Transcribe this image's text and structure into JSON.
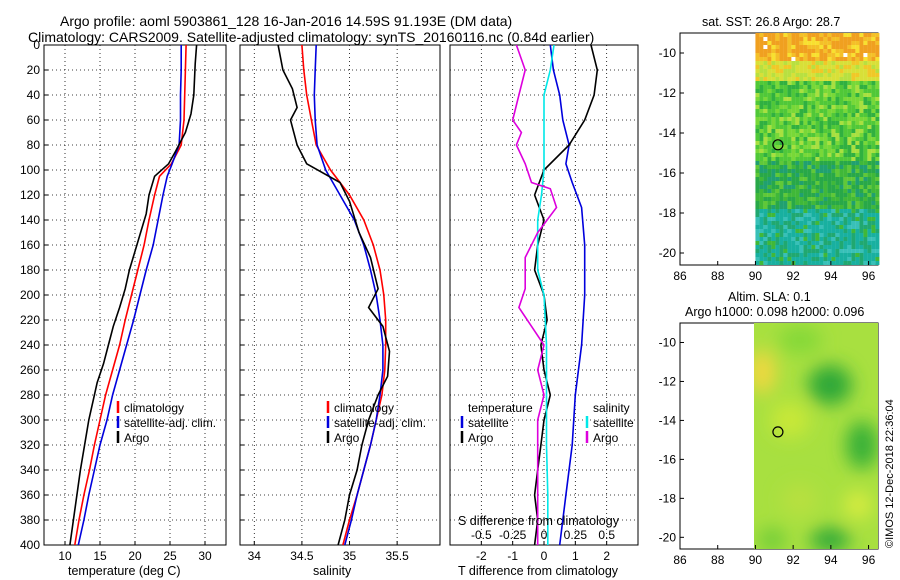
{
  "header": {
    "title_line1": "Argo profile: aoml 5903861_128 16-Jan-2016 14.59S 91.193E (DM data)",
    "title_line2": "Climatology: CARS2009. Satellite-adjusted climatology: synTS_20160116.nc (0.84d earlier)"
  },
  "credit": "©IMOS 12-Dec-2018 22:36:04",
  "colors": {
    "climatology": "#ff0000",
    "satellite": "#0000dd",
    "argo": "#000000",
    "sat_salinity": "#00e8e8",
    "argo_salinity": "#dd00dd"
  },
  "chart_data": [
    {
      "type": "line",
      "id": "temperature",
      "xlabel": "temperature (deg C)",
      "ylabel": "depth",
      "xlim": [
        7,
        33
      ],
      "ylim": [
        400,
        0
      ],
      "xticks": [
        10,
        15,
        20,
        25,
        30
      ],
      "yticks": [
        0,
        20,
        40,
        60,
        80,
        100,
        120,
        140,
        160,
        180,
        200,
        220,
        240,
        260,
        280,
        300,
        320,
        340,
        360,
        380,
        400
      ],
      "legend": [
        "climatology",
        "satellite-adj. clim.",
        "Argo"
      ],
      "series": [
        {
          "name": "climatology",
          "color": "#ff0000",
          "points": [
            [
              27.3,
              0
            ],
            [
              27.2,
              20
            ],
            [
              27.1,
              40
            ],
            [
              27.0,
              60
            ],
            [
              26.6,
              80
            ],
            [
              25.2,
              95
            ],
            [
              23.5,
              105
            ],
            [
              22.8,
              120
            ],
            [
              22.0,
              140
            ],
            [
              21.3,
              160
            ],
            [
              20.4,
              180
            ],
            [
              19.5,
              200
            ],
            [
              18.6,
              220
            ],
            [
              17.8,
              240
            ],
            [
              16.8,
              260
            ],
            [
              15.8,
              280
            ],
            [
              15.0,
              300
            ],
            [
              14.2,
              320
            ],
            [
              13.5,
              340
            ],
            [
              12.7,
              360
            ],
            [
              12.0,
              380
            ],
            [
              11.4,
              400
            ]
          ]
        },
        {
          "name": "satellite-adj. clim.",
          "color": "#0000dd",
          "points": [
            [
              26.6,
              0
            ],
            [
              26.6,
              20
            ],
            [
              26.5,
              40
            ],
            [
              26.5,
              60
            ],
            [
              26.3,
              80
            ],
            [
              25.3,
              95
            ],
            [
              24.6,
              105
            ],
            [
              24.0,
              120
            ],
            [
              23.3,
              140
            ],
            [
              22.6,
              160
            ],
            [
              21.6,
              180
            ],
            [
              20.7,
              200
            ],
            [
              19.8,
              220
            ],
            [
              18.8,
              240
            ],
            [
              17.8,
              260
            ],
            [
              16.8,
              280
            ],
            [
              16.0,
              300
            ],
            [
              15.0,
              320
            ],
            [
              14.2,
              340
            ],
            [
              13.4,
              360
            ],
            [
              12.7,
              380
            ],
            [
              11.9,
              400
            ]
          ]
        },
        {
          "name": "Argo",
          "color": "#000000",
          "points": [
            [
              28.8,
              0
            ],
            [
              28.6,
              15
            ],
            [
              28.4,
              40
            ],
            [
              28.0,
              55
            ],
            [
              27.2,
              70
            ],
            [
              25.8,
              85
            ],
            [
              24.8,
              95
            ],
            [
              22.8,
              105
            ],
            [
              22.0,
              120
            ],
            [
              21.6,
              135
            ],
            [
              20.8,
              150
            ],
            [
              20.0,
              165
            ],
            [
              19.2,
              180
            ],
            [
              18.6,
              195
            ],
            [
              17.8,
              210
            ],
            [
              16.9,
              225
            ],
            [
              16.2,
              240
            ],
            [
              15.5,
              255
            ],
            [
              14.6,
              270
            ],
            [
              14.0,
              285
            ],
            [
              13.4,
              300
            ],
            [
              12.8,
              320
            ],
            [
              12.2,
              340
            ],
            [
              11.7,
              360
            ],
            [
              11.2,
              380
            ],
            [
              10.7,
              400
            ]
          ]
        }
      ]
    },
    {
      "type": "line",
      "id": "salinity",
      "xlabel": "salinity",
      "xlim": [
        33.85,
        35.95
      ],
      "ylim": [
        400,
        0
      ],
      "xticks": [
        34,
        34.5,
        35,
        35.5
      ],
      "legend": [
        "climatology",
        "satellite-adj. clim.",
        "Argo"
      ],
      "series": [
        {
          "name": "climatology",
          "color": "#ff0000",
          "points": [
            [
              34.5,
              0
            ],
            [
              34.52,
              20
            ],
            [
              34.55,
              40
            ],
            [
              34.6,
              60
            ],
            [
              34.65,
              80
            ],
            [
              34.8,
              100
            ],
            [
              35.0,
              120
            ],
            [
              35.15,
              140
            ],
            [
              35.25,
              160
            ],
            [
              35.32,
              180
            ],
            [
              35.36,
              200
            ],
            [
              35.38,
              220
            ],
            [
              35.38,
              240
            ],
            [
              35.37,
              260
            ],
            [
              35.34,
              280
            ],
            [
              35.28,
              300
            ],
            [
              35.22,
              320
            ],
            [
              35.15,
              340
            ],
            [
              35.08,
              360
            ],
            [
              35.0,
              380
            ],
            [
              34.93,
              400
            ]
          ]
        },
        {
          "name": "satellite-adj. clim.",
          "color": "#0000dd",
          "points": [
            [
              34.65,
              0
            ],
            [
              34.64,
              20
            ],
            [
              34.63,
              40
            ],
            [
              34.64,
              60
            ],
            [
              34.66,
              80
            ],
            [
              34.75,
              100
            ],
            [
              34.9,
              120
            ],
            [
              35.05,
              140
            ],
            [
              35.15,
              160
            ],
            [
              35.22,
              180
            ],
            [
              35.28,
              200
            ],
            [
              35.32,
              220
            ],
            [
              35.35,
              240
            ],
            [
              35.35,
              260
            ],
            [
              35.32,
              280
            ],
            [
              35.28,
              300
            ],
            [
              35.22,
              320
            ],
            [
              35.15,
              340
            ],
            [
              35.08,
              360
            ],
            [
              35.02,
              380
            ],
            [
              34.95,
              400
            ]
          ]
        },
        {
          "name": "Argo",
          "color": "#000000",
          "points": [
            [
              34.25,
              0
            ],
            [
              34.3,
              20
            ],
            [
              34.4,
              35
            ],
            [
              34.45,
              50
            ],
            [
              34.38,
              60
            ],
            [
              34.45,
              80
            ],
            [
              34.55,
              95
            ],
            [
              34.9,
              110
            ],
            [
              35.0,
              125
            ],
            [
              35.1,
              150
            ],
            [
              35.22,
              170
            ],
            [
              35.3,
              195
            ],
            [
              35.2,
              210
            ],
            [
              35.35,
              225
            ],
            [
              35.42,
              245
            ],
            [
              35.4,
              265
            ],
            [
              35.3,
              280
            ],
            [
              35.2,
              300
            ],
            [
              35.13,
              320
            ],
            [
              35.08,
              340
            ],
            [
              35.0,
              360
            ],
            [
              34.95,
              380
            ],
            [
              34.88,
              400
            ]
          ]
        }
      ]
    },
    {
      "type": "line",
      "id": "difference",
      "xlabel": "T difference from climatology",
      "xlabel_top": "S difference from climatology",
      "xlim": [
        -3,
        3
      ],
      "ylim": [
        400,
        0
      ],
      "xticks": [
        -2,
        -1,
        0,
        1,
        2
      ],
      "xticks_top": [
        "-0.5",
        "-0.25",
        "0",
        "0.25",
        "0.5"
      ],
      "legend_temperature_title": "temperature",
      "legend_salinity_title": "salinity",
      "legend_temperature": [
        "satellite",
        "Argo"
      ],
      "legend_salinity": [
        "satellite",
        "Argo"
      ],
      "series": [
        {
          "name": "temperature satellite",
          "color": "#0000dd",
          "points": [
            [
              0.2,
              0
            ],
            [
              0.3,
              20
            ],
            [
              0.5,
              40
            ],
            [
              0.6,
              60
            ],
            [
              0.8,
              80
            ],
            [
              0.7,
              95
            ],
            [
              0.9,
              110
            ],
            [
              1.2,
              130
            ],
            [
              1.3,
              160
            ],
            [
              1.3,
              200
            ],
            [
              1.2,
              240
            ],
            [
              1.0,
              280
            ],
            [
              0.9,
              320
            ],
            [
              0.7,
              360
            ],
            [
              0.5,
              400
            ]
          ]
        },
        {
          "name": "temperature Argo",
          "color": "#000000",
          "points": [
            [
              1.5,
              0
            ],
            [
              1.7,
              20
            ],
            [
              1.6,
              40
            ],
            [
              1.3,
              60
            ],
            [
              0.8,
              80
            ],
            [
              0.0,
              100
            ],
            [
              -0.3,
              120
            ],
            [
              0.0,
              140
            ],
            [
              -0.2,
              160
            ],
            [
              -0.3,
              180
            ],
            [
              0.0,
              200
            ],
            [
              0.1,
              220
            ],
            [
              -0.1,
              240
            ],
            [
              0.0,
              260
            ],
            [
              0.2,
              280
            ],
            [
              0.0,
              300
            ],
            [
              -0.1,
              320
            ],
            [
              -0.2,
              340
            ],
            [
              -0.3,
              360
            ],
            [
              -0.2,
              380
            ],
            [
              -0.3,
              400
            ]
          ]
        },
        {
          "name": "salinity satellite",
          "color": "#00e8e8",
          "points": [
            [
              0.08,
              0
            ],
            [
              0.05,
              20
            ],
            [
              0.0,
              40
            ],
            [
              0.0,
              60
            ],
            [
              0.0,
              80
            ],
            [
              0.0,
              100
            ],
            [
              -0.02,
              120
            ],
            [
              -0.05,
              140
            ],
            [
              -0.05,
              160
            ],
            [
              -0.05,
              180
            ],
            [
              0.0,
              200
            ],
            [
              0.02,
              240
            ],
            [
              0.02,
              280
            ],
            [
              0.02,
              320
            ],
            [
              0.03,
              360
            ],
            [
              0.03,
              400
            ]
          ]
        },
        {
          "name": "salinity Argo",
          "color": "#dd00dd",
          "points": [
            [
              -0.22,
              0
            ],
            [
              -0.15,
              20
            ],
            [
              -0.2,
              40
            ],
            [
              -0.25,
              60
            ],
            [
              -0.18,
              70
            ],
            [
              -0.22,
              80
            ],
            [
              -0.15,
              95
            ],
            [
              -0.1,
              110
            ],
            [
              0.05,
              115
            ],
            [
              0.1,
              130
            ],
            [
              -0.05,
              150
            ],
            [
              -0.15,
              170
            ],
            [
              -0.15,
              195
            ],
            [
              -0.2,
              210
            ],
            [
              -0.1,
              225
            ],
            [
              0.0,
              240
            ],
            [
              -0.05,
              260
            ],
            [
              0.0,
              280
            ],
            [
              -0.05,
              300
            ],
            [
              -0.05,
              320
            ],
            [
              -0.05,
              340
            ],
            [
              -0.05,
              360
            ],
            [
              -0.05,
              380
            ],
            [
              -0.05,
              400
            ]
          ]
        }
      ]
    },
    {
      "type": "heatmap",
      "id": "sst_map",
      "title": "sat. SST: 26.8 Argo: 28.7",
      "xlim": [
        86,
        96.5
      ],
      "ylim": [
        -20.6,
        -9
      ],
      "xticks": [
        86,
        88,
        90,
        92,
        94,
        96
      ],
      "yticks": [
        -10,
        -12,
        -14,
        -16,
        -18,
        -20
      ],
      "data_extent_x": [
        90,
        96.5
      ],
      "argo_location": [
        91.193,
        -14.59
      ]
    },
    {
      "type": "heatmap",
      "id": "sla_map",
      "title_line1": "Altim. SLA: 0.1",
      "title_line2": "Argo h1000: 0.098 h2000: 0.096",
      "xlim": [
        86,
        96.5
      ],
      "ylim": [
        -20.6,
        -9
      ],
      "xticks": [
        86,
        88,
        90,
        92,
        94,
        96
      ],
      "yticks": [
        -10,
        -12,
        -14,
        -16,
        -18,
        -20
      ],
      "data_extent_x": [
        90,
        96.5
      ],
      "argo_location": [
        91.193,
        -14.59
      ]
    }
  ]
}
